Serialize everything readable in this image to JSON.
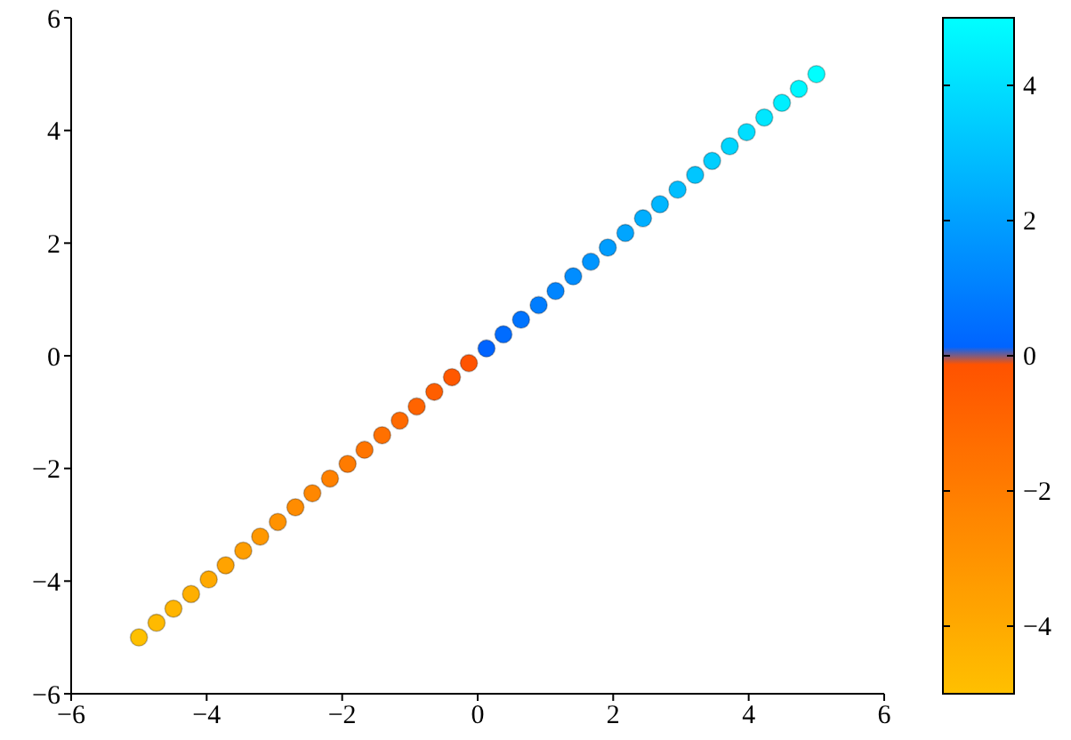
{
  "chart_data": {
    "type": "scatter",
    "x": [
      -5,
      -4.74,
      -4.49,
      -4.23,
      -3.97,
      -3.72,
      -3.46,
      -3.21,
      -2.95,
      -2.69,
      -2.44,
      -2.18,
      -1.92,
      -1.67,
      -1.41,
      -1.15,
      -0.9,
      -0.64,
      -0.38,
      -0.13,
      0.13,
      0.38,
      0.64,
      0.9,
      1.15,
      1.41,
      1.67,
      1.92,
      2.18,
      2.44,
      2.69,
      2.95,
      3.21,
      3.46,
      3.72,
      3.97,
      4.23,
      4.49,
      4.74,
      5
    ],
    "values": [
      -5,
      -4.74,
      -4.49,
      -4.23,
      -3.97,
      -3.72,
      -3.46,
      -3.21,
      -2.95,
      -2.69,
      -2.44,
      -2.18,
      -1.92,
      -1.67,
      -1.41,
      -1.15,
      -0.9,
      -0.64,
      -0.38,
      -0.13,
      0.13,
      0.38,
      0.64,
      0.9,
      1.15,
      1.41,
      1.67,
      1.92,
      2.18,
      2.44,
      2.69,
      2.95,
      3.21,
      3.46,
      3.72,
      3.97,
      4.23,
      4.49,
      4.74,
      5
    ],
    "cvalues": [
      -5,
      -4.74,
      -4.49,
      -4.23,
      -3.97,
      -3.72,
      -3.46,
      -3.21,
      -2.95,
      -2.69,
      -2.44,
      -2.18,
      -1.92,
      -1.67,
      -1.41,
      -1.15,
      -0.9,
      -0.64,
      -0.38,
      -0.13,
      0.13,
      0.38,
      0.64,
      0.9,
      1.15,
      1.41,
      1.67,
      1.92,
      2.18,
      2.44,
      2.69,
      2.95,
      3.21,
      3.46,
      3.72,
      3.97,
      4.23,
      4.49,
      4.74,
      5
    ],
    "colors": [
      "#ffc000",
      "#ffba00",
      "#ffb500",
      "#ffaf00",
      "#ffa900",
      "#ffa300",
      "#ff9e00",
      "#ff9800",
      "#ff9200",
      "#ff8c00",
      "#ff8700",
      "#ff8100",
      "#ff7b00",
      "#ff7500",
      "#ff7000",
      "#ff6a00",
      "#ff6400",
      "#ff5e00",
      "#ff5800",
      "#ff5300",
      "#0064ff",
      "#006cff",
      "#0074ff",
      "#007dff",
      "#0085ff",
      "#008dff",
      "#0095ff",
      "#009dff",
      "#00a5ff",
      "#00aeff",
      "#00b6ff",
      "#00beff",
      "#00c6ff",
      "#00ceff",
      "#00d6ff",
      "#00deff",
      "#00e7ff",
      "#00efff",
      "#00f7ff",
      "#00ffff"
    ],
    "marker": "circle",
    "xlim": [
      -6,
      6
    ],
    "xticks": [
      {
        "value": -6,
        "label": "−6"
      },
      {
        "value": -4,
        "label": "−4"
      },
      {
        "value": -2,
        "label": "−2"
      },
      0,
      2,
      4,
      6
    ],
    "ylim": [
      -6,
      6
    ],
    "yticks": [
      {
        "value": -6,
        "label": "−6"
      },
      {
        "value": -4,
        "label": "−4"
      },
      {
        "value": -2,
        "label": "−2"
      },
      0,
      2,
      4,
      6
    ],
    "clim": [
      -5,
      5
    ],
    "cticks": [
      {
        "value": -4,
        "label": "−4"
      },
      {
        "value": -2,
        "label": "−2"
      },
      0,
      2,
      4
    ]
  }
}
